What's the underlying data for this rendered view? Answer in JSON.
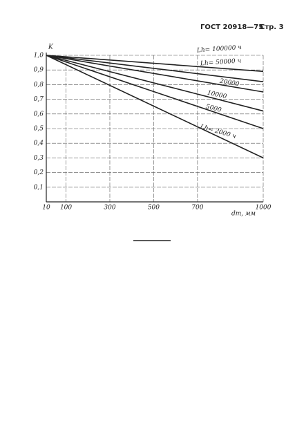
{
  "header": {
    "standard": "ГОСТ 20918—75",
    "page": "Стр. 3"
  },
  "chart_data": {
    "type": "line",
    "y_label": "K",
    "x_label": "dm, мм",
    "xlim": [
      10,
      1000
    ],
    "xticks": [
      10,
      100,
      300,
      500,
      700,
      1000
    ],
    "ylim": [
      0,
      1.0
    ],
    "yticks": [
      {
        "value": 0.1,
        "label": "0,1"
      },
      {
        "value": 0.2,
        "label": "0,2"
      },
      {
        "value": 0.3,
        "label": "0,3"
      },
      {
        "value": 0.4,
        "label": "0,4"
      },
      {
        "value": 0.5,
        "label": "0,5"
      },
      {
        "value": 0.6,
        "label": "0,6"
      },
      {
        "value": 0.7,
        "label": "0,7"
      },
      {
        "value": 0.8,
        "label": "0,8"
      },
      {
        "value": 0.9,
        "label": "0,9"
      },
      {
        "value": 1.0,
        "label": "1,0"
      }
    ],
    "grid": true,
    "color": "#222",
    "x": [
      10,
      1000
    ],
    "series": [
      {
        "name": "Lh= 100000 ч",
        "values": [
          1.0,
          0.89
        ]
      },
      {
        "name": "Lh= 50000 ч",
        "values": [
          1.0,
          0.82
        ]
      },
      {
        "name": "20000",
        "values": [
          1.0,
          0.75
        ]
      },
      {
        "name": "10000",
        "values": [
          1.0,
          0.62
        ]
      },
      {
        "name": "5000",
        "values": [
          1.0,
          0.5
        ]
      },
      {
        "name": "Lh= 2000 ч",
        "values": [
          1.0,
          0.3
        ]
      }
    ]
  }
}
